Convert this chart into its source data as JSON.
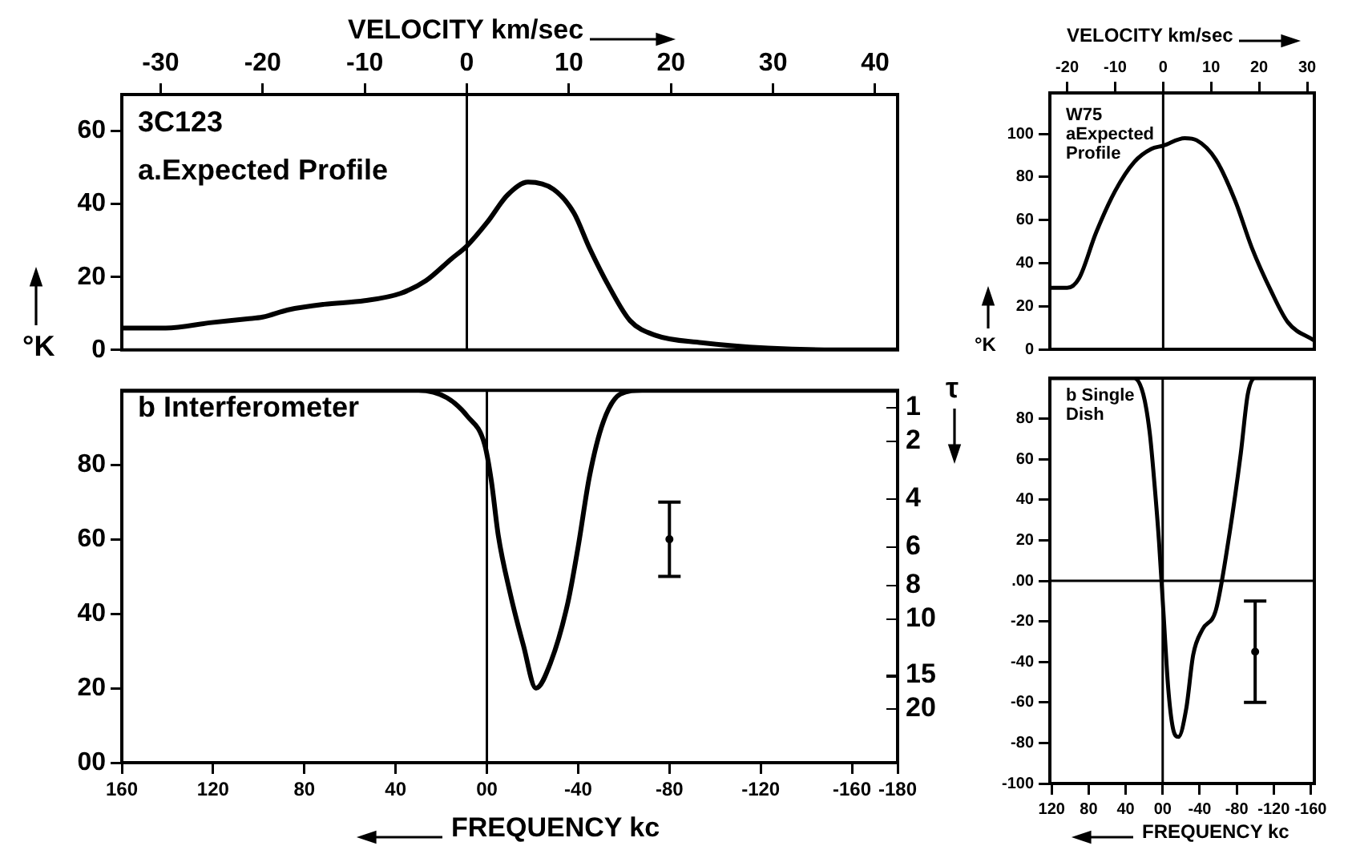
{
  "chart_data": [
    {
      "type": "line",
      "xlabel": "VELOCITY km/sec",
      "ylabel": "°K",
      "marker": "none",
      "annotations": [
        "3C123",
        "a.Expected Profile"
      ],
      "xlim": [
        -33.8,
        42.2
      ],
      "xticks": [
        -30,
        -20,
        -10,
        0,
        10,
        20,
        30,
        40
      ],
      "ylim": [
        0,
        70
      ],
      "yticks": [
        0,
        20,
        40,
        60
      ],
      "ref_lines": [
        {
          "axis": "x",
          "value": 0
        }
      ],
      "series": [
        {
          "type": "line",
          "color": "#000000",
          "x": [
            -33.8,
            -29.5,
            -25,
            -21.5,
            -20,
            -17.5,
            -14,
            -10,
            -6.5,
            -4,
            -1.5,
            0,
            2,
            4,
            6,
            8.5,
            10.5,
            12,
            14,
            16,
            18.5,
            23,
            29.5,
            36,
            42.2
          ],
          "values": [
            6,
            6,
            7.5,
            8.5,
            9,
            11,
            12.5,
            13.5,
            15.5,
            19,
            25,
            28.5,
            35,
            42.5,
            46,
            44,
            37.5,
            28,
            17,
            8,
            4,
            2,
            0.5,
            0,
            0
          ]
        }
      ]
    },
    {
      "type": "line",
      "xlabel": "FREQUENCY kc",
      "y2label": "τ",
      "marker": "none",
      "annotations": [
        "b Interferometer",
        "1",
        "2",
        "4",
        "6",
        "8",
        "10",
        "15",
        "20"
      ],
      "xlim": [
        160,
        -180
      ],
      "xticks": [
        160,
        120,
        80,
        40,
        {
          "value": 0,
          "label": "00"
        },
        -40,
        -80,
        -120,
        -160,
        -180
      ],
      "ylim": [
        0,
        100
      ],
      "yticks": [
        {
          "value": 0,
          "label": "00"
        },
        20,
        40,
        60,
        80
      ],
      "ref_lines": [
        {
          "axis": "x",
          "value": 0
        }
      ],
      "series": [
        {
          "type": "line",
          "color": "#000000",
          "x": [
            160,
            30,
            17.5,
            8.5,
            1,
            -2,
            -5,
            -10,
            -16,
            -21.5,
            -28,
            -35.5,
            -40,
            -45,
            -51,
            -58.5,
            -68,
            -180
          ],
          "values": [
            100,
            100,
            98,
            93,
            85.5,
            75.5,
            61,
            46,
            31.5,
            20,
            27,
            43,
            58,
            77,
            91.5,
            99,
            100,
            100
          ]
        },
        {
          "type": "scatter",
          "marker": "circle",
          "color": "#000000",
          "x": [
            -80
          ],
          "values": [
            60
          ],
          "errors": [
            10
          ]
        }
      ]
    },
    {
      "type": "line",
      "xlabel": "VELOCITY km/sec",
      "ylabel": "°K",
      "marker": "none",
      "annotations": [
        "W75",
        "aExpected Profile"
      ],
      "xlim": [
        -23.6,
        31.5
      ],
      "xticks": [
        -20,
        -10,
        0,
        10,
        20,
        30
      ],
      "ylim": [
        0,
        119
      ],
      "yticks": [
        0,
        20,
        40,
        60,
        80,
        100
      ],
      "ref_lines": [
        {
          "axis": "x",
          "value": 0
        }
      ],
      "series": [
        {
          "type": "line",
          "color": "#000000",
          "x": [
            -23.6,
            -20,
            -17.5,
            -14,
            -10,
            -6,
            -2.5,
            0,
            4.5,
            7,
            11,
            15,
            18.5,
            22.5,
            26,
            31.5
          ],
          "values": [
            28.5,
            28.5,
            33,
            54,
            73.5,
            87,
            93,
            94.5,
            98,
            97,
            88,
            69,
            47,
            27,
            12.5,
            4
          ]
        }
      ]
    },
    {
      "type": "line",
      "xlabel": "FREQUENCY kc",
      "marker": "none",
      "annotations": [
        "b Single Dish"
      ],
      "xlim": [
        122,
        -164
      ],
      "xticks": [
        120,
        80,
        40,
        {
          "value": 0,
          "label": "00"
        },
        -40,
        -80,
        -120,
        -160
      ],
      "ylim": [
        -100,
        100
      ],
      "yticks": [
        -100,
        -80,
        -60,
        -40,
        -20,
        {
          "value": 0,
          "label": ".00"
        },
        20,
        40,
        60,
        80
      ],
      "ref_lines": [
        {
          "axis": "x",
          "value": 0
        },
        {
          "axis": "y",
          "value": 0
        }
      ],
      "series": [
        {
          "type": "line",
          "color": "#000000",
          "x": [
            122,
            31,
            21,
            14,
            9,
            4,
            -1,
            -6,
            -11,
            -17,
            -25.5,
            -33,
            -43,
            -57.5,
            -72.5,
            -84.5,
            -92,
            -99.5,
            -164
          ],
          "values": [
            100,
            100,
            92,
            73,
            48.5,
            19.5,
            -17,
            -53,
            -72.5,
            -77,
            -63,
            -36.5,
            -24,
            -14.5,
            24,
            63,
            92,
            100,
            100
          ]
        },
        {
          "type": "scatter",
          "marker": "circle",
          "color": "#000000",
          "x": [
            -100
          ],
          "values": [
            -35
          ],
          "errors": [
            25
          ]
        }
      ]
    }
  ]
}
